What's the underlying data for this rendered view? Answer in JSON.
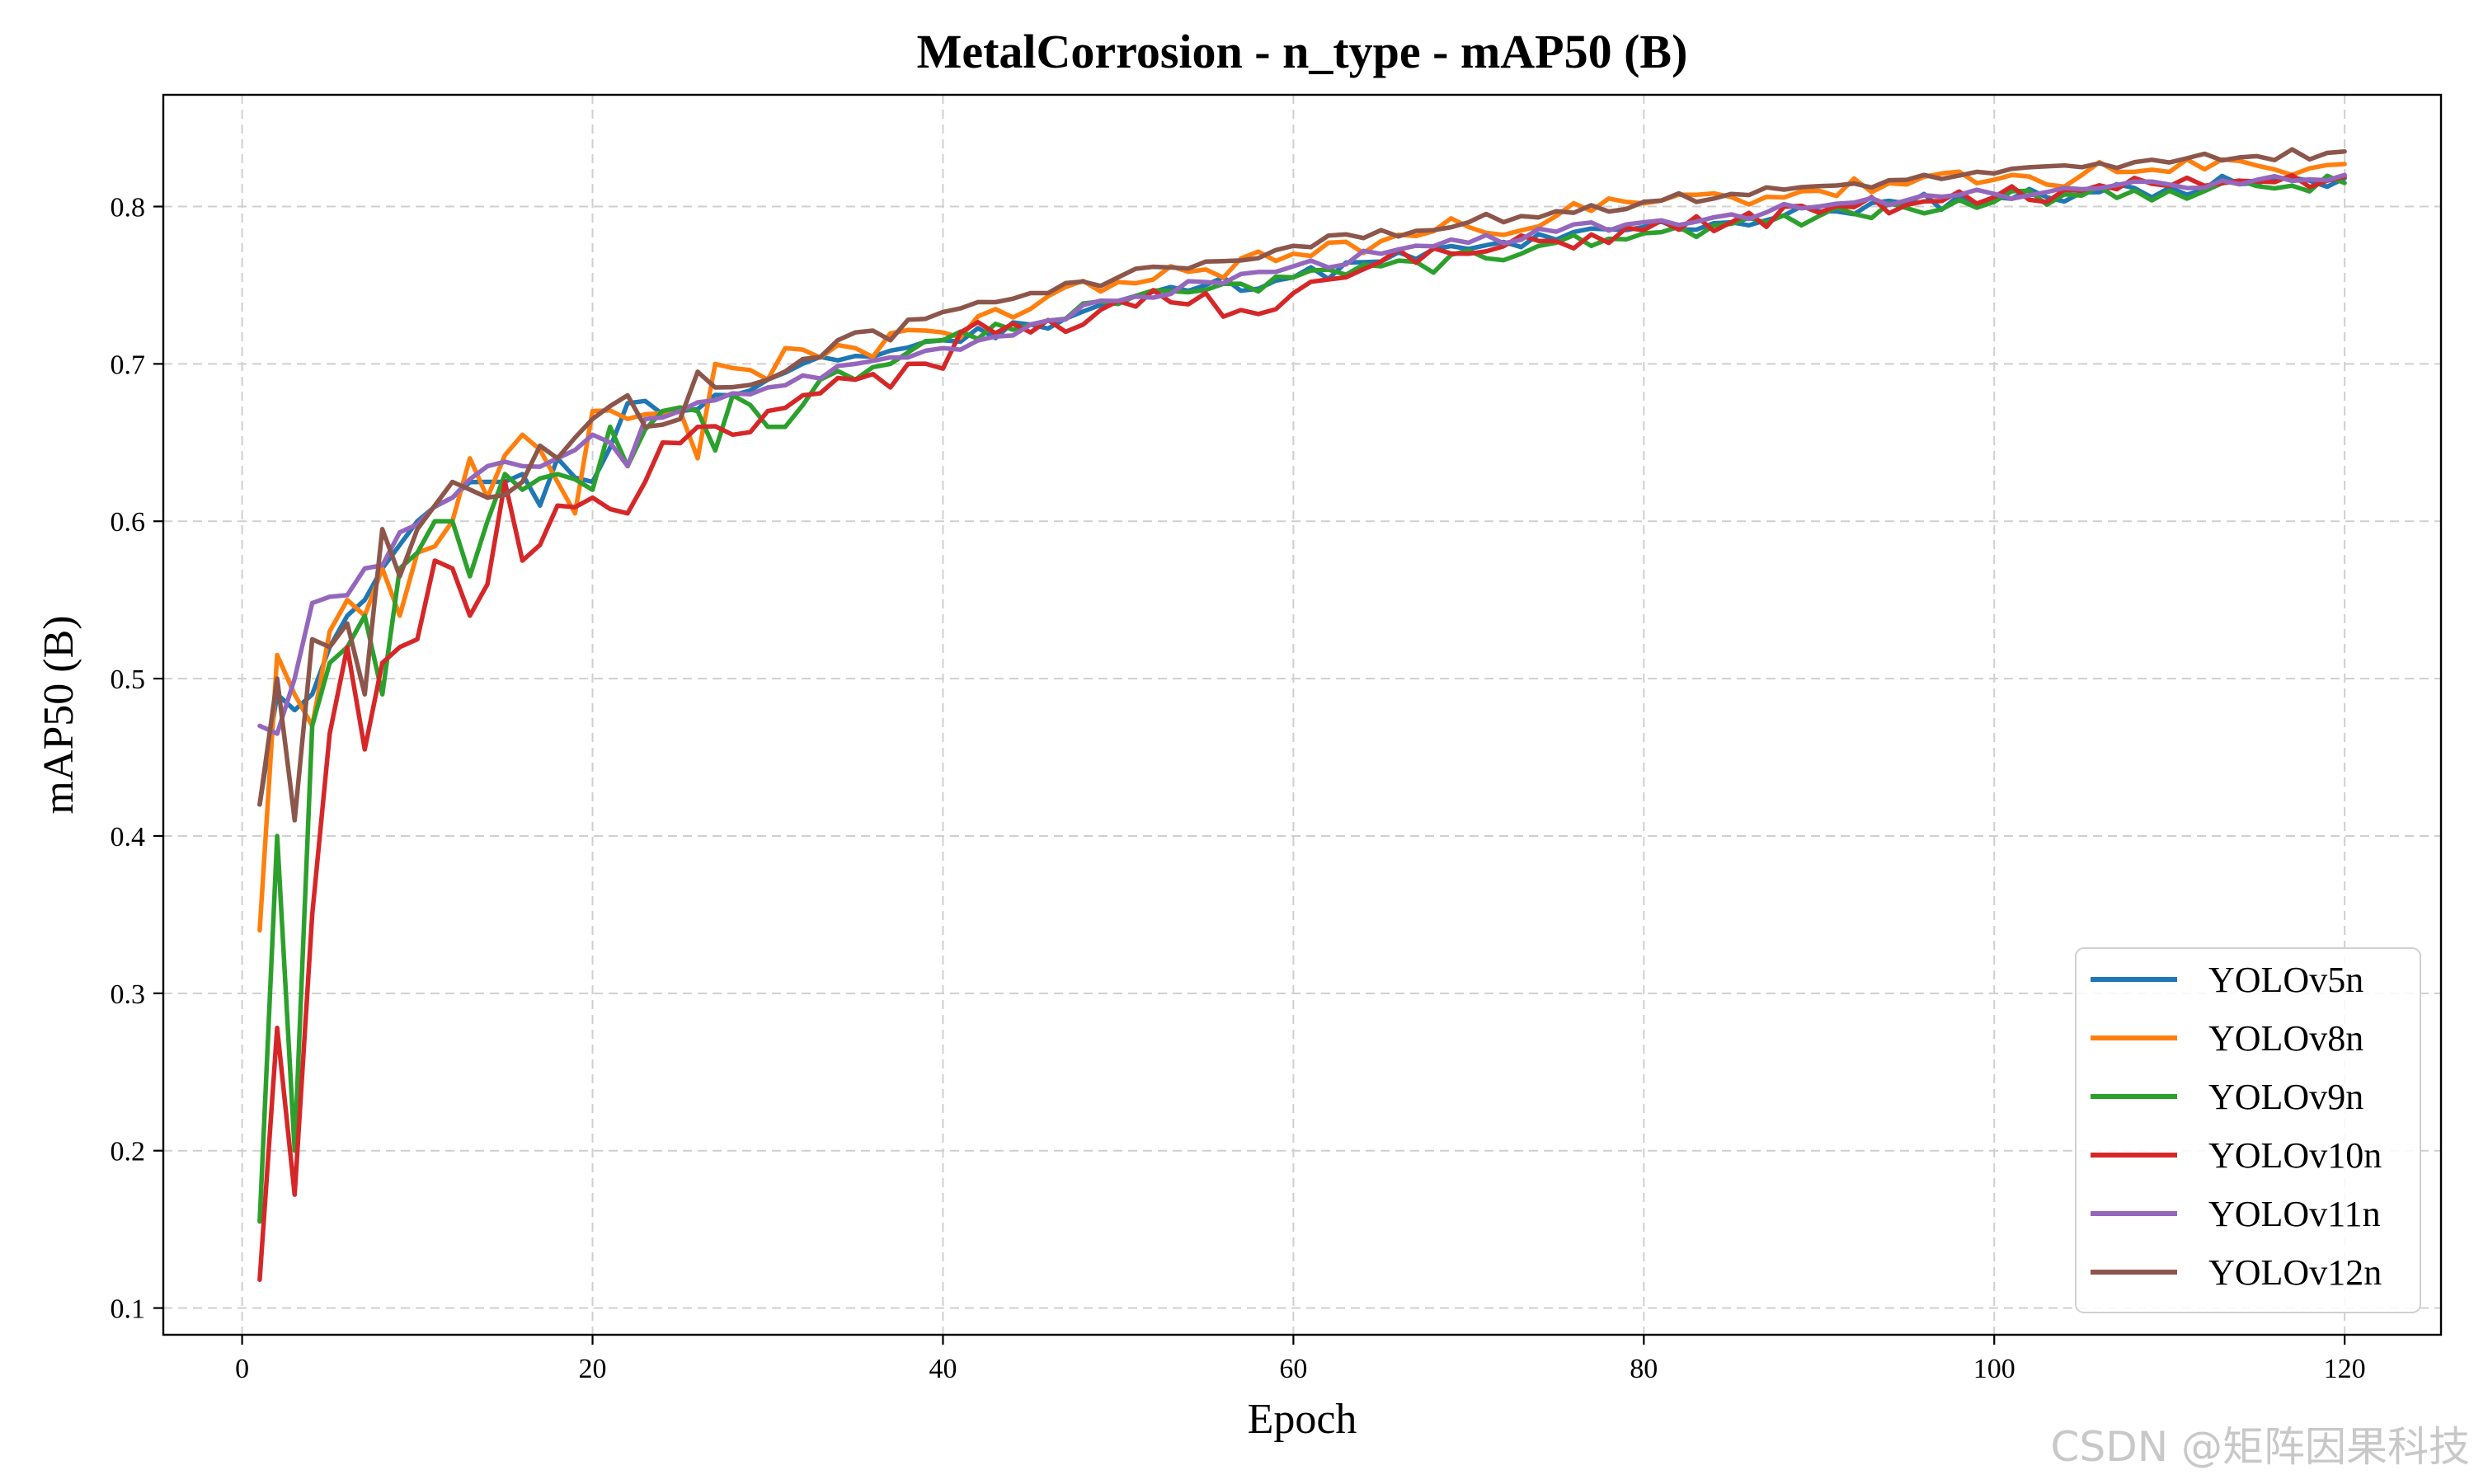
{
  "watermark": "CSDN @矩阵因果科技",
  "chart_data": {
    "type": "line",
    "title": "MetalCorrosion - n_type - mAP50 (B)",
    "xlabel": "Epoch",
    "ylabel": "mAP50 (B)",
    "xlim": [
      -4.5,
      125.5
    ],
    "ylim": [
      0.083,
      0.871
    ],
    "xticks": [
      0,
      20,
      40,
      60,
      80,
      100,
      120
    ],
    "yticks": [
      0.1,
      0.2,
      0.3,
      0.4,
      0.5,
      0.6,
      0.7,
      0.8
    ],
    "xtick_labels": [
      "0",
      "20",
      "40",
      "60",
      "80",
      "100",
      "120"
    ],
    "ytick_labels": [
      "0.1",
      "0.2",
      "0.3",
      "0.4",
      "0.5",
      "0.6",
      "0.7",
      "0.8"
    ],
    "grid": true,
    "legend_position": "lower-right",
    "x_start": 1,
    "x_end": 120,
    "series": [
      {
        "name": "YOLOv5n",
        "color": "#1f77b4",
        "anchors": [
          [
            1,
            0.42
          ],
          [
            2,
            0.49
          ],
          [
            3,
            0.48
          ],
          [
            4,
            0.49
          ],
          [
            5,
            0.52
          ],
          [
            6,
            0.54
          ],
          [
            7,
            0.55
          ],
          [
            8,
            0.57
          ],
          [
            9,
            0.585
          ],
          [
            10,
            0.6
          ],
          [
            12,
            0.615
          ],
          [
            14,
            0.625
          ],
          [
            16,
            0.63
          ],
          [
            17,
            0.61
          ],
          [
            18,
            0.64
          ],
          [
            20,
            0.625
          ],
          [
            22,
            0.675
          ],
          [
            25,
            0.67
          ],
          [
            28,
            0.68
          ],
          [
            30,
            0.69
          ],
          [
            35,
            0.705
          ],
          [
            40,
            0.715
          ],
          [
            45,
            0.725
          ],
          [
            50,
            0.74
          ],
          [
            55,
            0.75
          ],
          [
            60,
            0.755
          ],
          [
            65,
            0.765
          ],
          [
            70,
            0.773
          ],
          [
            75,
            0.779
          ],
          [
            80,
            0.787
          ],
          [
            85,
            0.79
          ],
          [
            90,
            0.797
          ],
          [
            95,
            0.802
          ],
          [
            100,
            0.806
          ],
          [
            105,
            0.809
          ],
          [
            110,
            0.812
          ],
          [
            115,
            0.815
          ],
          [
            120,
            0.818
          ]
        ],
        "jitter": 0.006,
        "seed": 11
      },
      {
        "name": "YOLOv8n",
        "color": "#ff7f0e",
        "anchors": [
          [
            1,
            0.34
          ],
          [
            2,
            0.515
          ],
          [
            3,
            0.49
          ],
          [
            4,
            0.47
          ],
          [
            5,
            0.53
          ],
          [
            6,
            0.55
          ],
          [
            7,
            0.54
          ],
          [
            8,
            0.57
          ],
          [
            9,
            0.54
          ],
          [
            10,
            0.58
          ],
          [
            12,
            0.6
          ],
          [
            13,
            0.64
          ],
          [
            14,
            0.615
          ],
          [
            16,
            0.655
          ],
          [
            18,
            0.625
          ],
          [
            19,
            0.605
          ],
          [
            20,
            0.67
          ],
          [
            22,
            0.665
          ],
          [
            25,
            0.67
          ],
          [
            26,
            0.64
          ],
          [
            27,
            0.7
          ],
          [
            30,
            0.69
          ],
          [
            31,
            0.71
          ],
          [
            35,
            0.71
          ],
          [
            40,
            0.72
          ],
          [
            45,
            0.735
          ],
          [
            50,
            0.752
          ],
          [
            55,
            0.76
          ],
          [
            60,
            0.77
          ],
          [
            65,
            0.778
          ],
          [
            70,
            0.787
          ],
          [
            75,
            0.794
          ],
          [
            80,
            0.802
          ],
          [
            85,
            0.806
          ],
          [
            90,
            0.81
          ],
          [
            95,
            0.814
          ],
          [
            100,
            0.817
          ],
          [
            105,
            0.82
          ],
          [
            110,
            0.822
          ],
          [
            115,
            0.826
          ],
          [
            120,
            0.827
          ]
        ],
        "jitter": 0.008,
        "seed": 23
      },
      {
        "name": "YOLOv9n",
        "color": "#2ca02c",
        "anchors": [
          [
            1,
            0.155
          ],
          [
            2,
            0.4
          ],
          [
            3,
            0.2
          ],
          [
            4,
            0.47
          ],
          [
            5,
            0.51
          ],
          [
            6,
            0.52
          ],
          [
            7,
            0.54
          ],
          [
            8,
            0.49
          ],
          [
            9,
            0.57
          ],
          [
            10,
            0.58
          ],
          [
            11,
            0.6
          ],
          [
            12,
            0.6
          ],
          [
            13,
            0.565
          ],
          [
            14,
            0.6
          ],
          [
            15,
            0.63
          ],
          [
            16,
            0.62
          ],
          [
            18,
            0.63
          ],
          [
            20,
            0.62
          ],
          [
            21,
            0.66
          ],
          [
            22,
            0.635
          ],
          [
            24,
            0.67
          ],
          [
            26,
            0.67
          ],
          [
            27,
            0.645
          ],
          [
            28,
            0.68
          ],
          [
            30,
            0.66
          ],
          [
            31,
            0.66
          ],
          [
            33,
            0.69
          ],
          [
            35,
            0.69
          ],
          [
            37,
            0.7
          ],
          [
            40,
            0.715
          ],
          [
            45,
            0.725
          ],
          [
            50,
            0.738
          ],
          [
            55,
            0.747
          ],
          [
            60,
            0.755
          ],
          [
            65,
            0.762
          ],
          [
            68,
            0.758
          ],
          [
            70,
            0.772
          ],
          [
            73,
            0.77
          ],
          [
            75,
            0.777
          ],
          [
            80,
            0.783
          ],
          [
            85,
            0.789
          ],
          [
            90,
            0.794
          ],
          [
            95,
            0.799
          ],
          [
            100,
            0.803
          ],
          [
            105,
            0.807
          ],
          [
            110,
            0.81
          ],
          [
            115,
            0.813
          ],
          [
            120,
            0.815
          ]
        ],
        "jitter": 0.006,
        "seed": 37
      },
      {
        "name": "YOLOv10n",
        "color": "#d62728",
        "anchors": [
          [
            1,
            0.118
          ],
          [
            2,
            0.278
          ],
          [
            3,
            0.172
          ],
          [
            4,
            0.35
          ],
          [
            5,
            0.465
          ],
          [
            6,
            0.52
          ],
          [
            7,
            0.455
          ],
          [
            8,
            0.51
          ],
          [
            9,
            0.52
          ],
          [
            10,
            0.525
          ],
          [
            11,
            0.575
          ],
          [
            12,
            0.57
          ],
          [
            13,
            0.54
          ],
          [
            14,
            0.56
          ],
          [
            15,
            0.625
          ],
          [
            16,
            0.575
          ],
          [
            17,
            0.585
          ],
          [
            18,
            0.61
          ],
          [
            20,
            0.615
          ],
          [
            22,
            0.605
          ],
          [
            23,
            0.625
          ],
          [
            24,
            0.65
          ],
          [
            26,
            0.66
          ],
          [
            28,
            0.655
          ],
          [
            30,
            0.67
          ],
          [
            32,
            0.68
          ],
          [
            35,
            0.69
          ],
          [
            37,
            0.685
          ],
          [
            38,
            0.7
          ],
          [
            40,
            0.697
          ],
          [
            41,
            0.72
          ],
          [
            45,
            0.72
          ],
          [
            48,
            0.725
          ],
          [
            50,
            0.74
          ],
          [
            55,
            0.745
          ],
          [
            56,
            0.73
          ],
          [
            60,
            0.745
          ],
          [
            63,
            0.755
          ],
          [
            65,
            0.765
          ],
          [
            70,
            0.77
          ],
          [
            75,
            0.778
          ],
          [
            80,
            0.785
          ],
          [
            85,
            0.79
          ],
          [
            90,
            0.796
          ],
          [
            95,
            0.801
          ],
          [
            100,
            0.806
          ],
          [
            105,
            0.81
          ],
          [
            110,
            0.813
          ],
          [
            115,
            0.816
          ],
          [
            120,
            0.819
          ]
        ],
        "jitter": 0.007,
        "seed": 51
      },
      {
        "name": "YOLOv11n",
        "color": "#9467bd",
        "anchors": [
          [
            1,
            0.47
          ],
          [
            2,
            0.465
          ],
          [
            3,
            0.5
          ],
          [
            4,
            0.548
          ],
          [
            5,
            0.552
          ],
          [
            6,
            0.553
          ],
          [
            7,
            0.57
          ],
          [
            8,
            0.572
          ],
          [
            9,
            0.593
          ],
          [
            10,
            0.598
          ],
          [
            12,
            0.615
          ],
          [
            14,
            0.635
          ],
          [
            16,
            0.635
          ],
          [
            18,
            0.64
          ],
          [
            20,
            0.655
          ],
          [
            21,
            0.65
          ],
          [
            22,
            0.635
          ],
          [
            23,
            0.665
          ],
          [
            25,
            0.67
          ],
          [
            30,
            0.685
          ],
          [
            35,
            0.7
          ],
          [
            40,
            0.71
          ],
          [
            45,
            0.725
          ],
          [
            50,
            0.74
          ],
          [
            55,
            0.752
          ],
          [
            60,
            0.762
          ],
          [
            65,
            0.77
          ],
          [
            70,
            0.777
          ],
          [
            75,
            0.784
          ],
          [
            80,
            0.79
          ],
          [
            85,
            0.795
          ],
          [
            90,
            0.8
          ],
          [
            95,
            0.804
          ],
          [
            100,
            0.808
          ],
          [
            105,
            0.811
          ],
          [
            110,
            0.814
          ],
          [
            115,
            0.817
          ],
          [
            120,
            0.82
          ]
        ],
        "jitter": 0.004,
        "seed": 67
      },
      {
        "name": "YOLOv12n",
        "color": "#8c564b",
        "anchors": [
          [
            1,
            0.42
          ],
          [
            2,
            0.5
          ],
          [
            3,
            0.41
          ],
          [
            4,
            0.525
          ],
          [
            5,
            0.52
          ],
          [
            6,
            0.535
          ],
          [
            7,
            0.49
          ],
          [
            8,
            0.595
          ],
          [
            9,
            0.565
          ],
          [
            10,
            0.595
          ],
          [
            11,
            0.61
          ],
          [
            12,
            0.625
          ],
          [
            14,
            0.615
          ],
          [
            16,
            0.625
          ],
          [
            17,
            0.648
          ],
          [
            18,
            0.64
          ],
          [
            20,
            0.665
          ],
          [
            22,
            0.68
          ],
          [
            23,
            0.66
          ],
          [
            25,
            0.665
          ],
          [
            26,
            0.695
          ],
          [
            27,
            0.685
          ],
          [
            30,
            0.69
          ],
          [
            35,
            0.72
          ],
          [
            37,
            0.715
          ],
          [
            38,
            0.728
          ],
          [
            40,
            0.733
          ],
          [
            45,
            0.745
          ],
          [
            50,
            0.755
          ],
          [
            55,
            0.765
          ],
          [
            60,
            0.775
          ],
          [
            65,
            0.785
          ],
          [
            68,
            0.785
          ],
          [
            70,
            0.79
          ],
          [
            75,
            0.797
          ],
          [
            80,
            0.803
          ],
          [
            85,
            0.808
          ],
          [
            90,
            0.813
          ],
          [
            95,
            0.817
          ],
          [
            100,
            0.821
          ],
          [
            105,
            0.825
          ],
          [
            110,
            0.828
          ],
          [
            115,
            0.832
          ],
          [
            120,
            0.835
          ]
        ],
        "jitter": 0.004,
        "seed": 83
      }
    ]
  }
}
